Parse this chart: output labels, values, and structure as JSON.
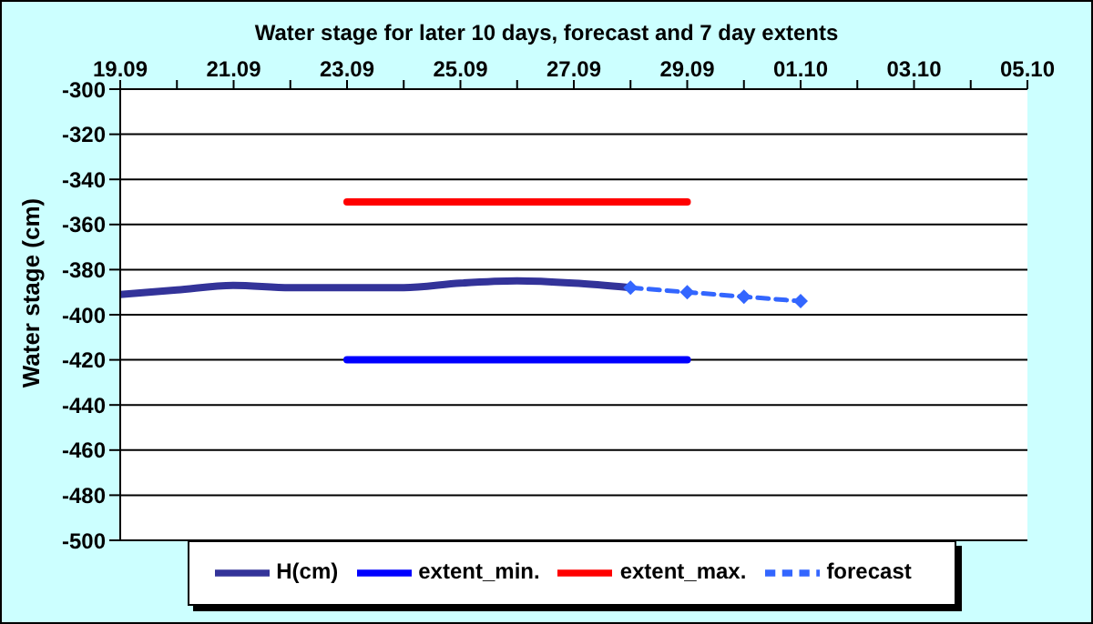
{
  "chart_data": {
    "type": "line",
    "title": "Water stage for later 10 days, forecast and 7 day extents",
    "ylabel": "Water stage (cm)",
    "xlim": [
      "--09-19",
      "--10-05"
    ],
    "xticks": [
      {
        "value": "--09-19",
        "label": "19.09"
      },
      {
        "value": "--09-20",
        "label": null
      },
      {
        "value": "--09-21",
        "label": "21.09"
      },
      {
        "value": "--09-22",
        "label": null
      },
      {
        "value": "--09-23",
        "label": "23.09"
      },
      {
        "value": "--09-24",
        "label": null
      },
      {
        "value": "--09-25",
        "label": "25.09"
      },
      {
        "value": "--09-26",
        "label": null
      },
      {
        "value": "--09-27",
        "label": "27.09"
      },
      {
        "value": "--09-28",
        "label": null
      },
      {
        "value": "--09-29",
        "label": "29.09"
      },
      {
        "value": "--09-30",
        "label": null
      },
      {
        "value": "--10-01",
        "label": "01.10"
      },
      {
        "value": "--10-02",
        "label": null
      },
      {
        "value": "--10-03",
        "label": "03.10"
      },
      {
        "value": "--10-04",
        "label": null
      },
      {
        "value": "--10-05",
        "label": "05.10"
      }
    ],
    "ylim": [
      -500,
      -300
    ],
    "yticks": [
      -500,
      -480,
      -460,
      -440,
      -420,
      -400,
      -380,
      -360,
      -340,
      -320,
      -300
    ],
    "grid": "y",
    "legend": "bottom",
    "series": [
      {
        "name": "H(cm)",
        "color": "#333399",
        "x": [
          "--09-19",
          "--09-20",
          "--09-21",
          "--09-22",
          "--09-23",
          "--09-24",
          "--09-25",
          "--09-26",
          "--09-27",
          "--09-28"
        ],
        "values": [
          -391,
          -389,
          -387,
          -388,
          -388,
          -388,
          -386,
          -385,
          -386,
          -388
        ],
        "marker": "none",
        "line_style": "solid"
      },
      {
        "name": "extent_min.",
        "color": "#0000ff",
        "x": [
          "--09-23",
          "--09-29"
        ],
        "values": [
          -420,
          -420
        ],
        "marker": "none",
        "line_style": "solid"
      },
      {
        "name": "extent_max.",
        "color": "#ff0000",
        "x": [
          "--09-23",
          "--09-29"
        ],
        "values": [
          -350,
          -350
        ],
        "marker": "none",
        "line_style": "solid"
      },
      {
        "name": "forecast",
        "color": "#3366ff",
        "x": [
          "--09-28",
          "--09-29",
          "--09-30",
          "--10-01"
        ],
        "values": [
          -388,
          -390,
          -392,
          -394
        ],
        "marker": "diamond",
        "line_style": "dashed"
      }
    ]
  }
}
